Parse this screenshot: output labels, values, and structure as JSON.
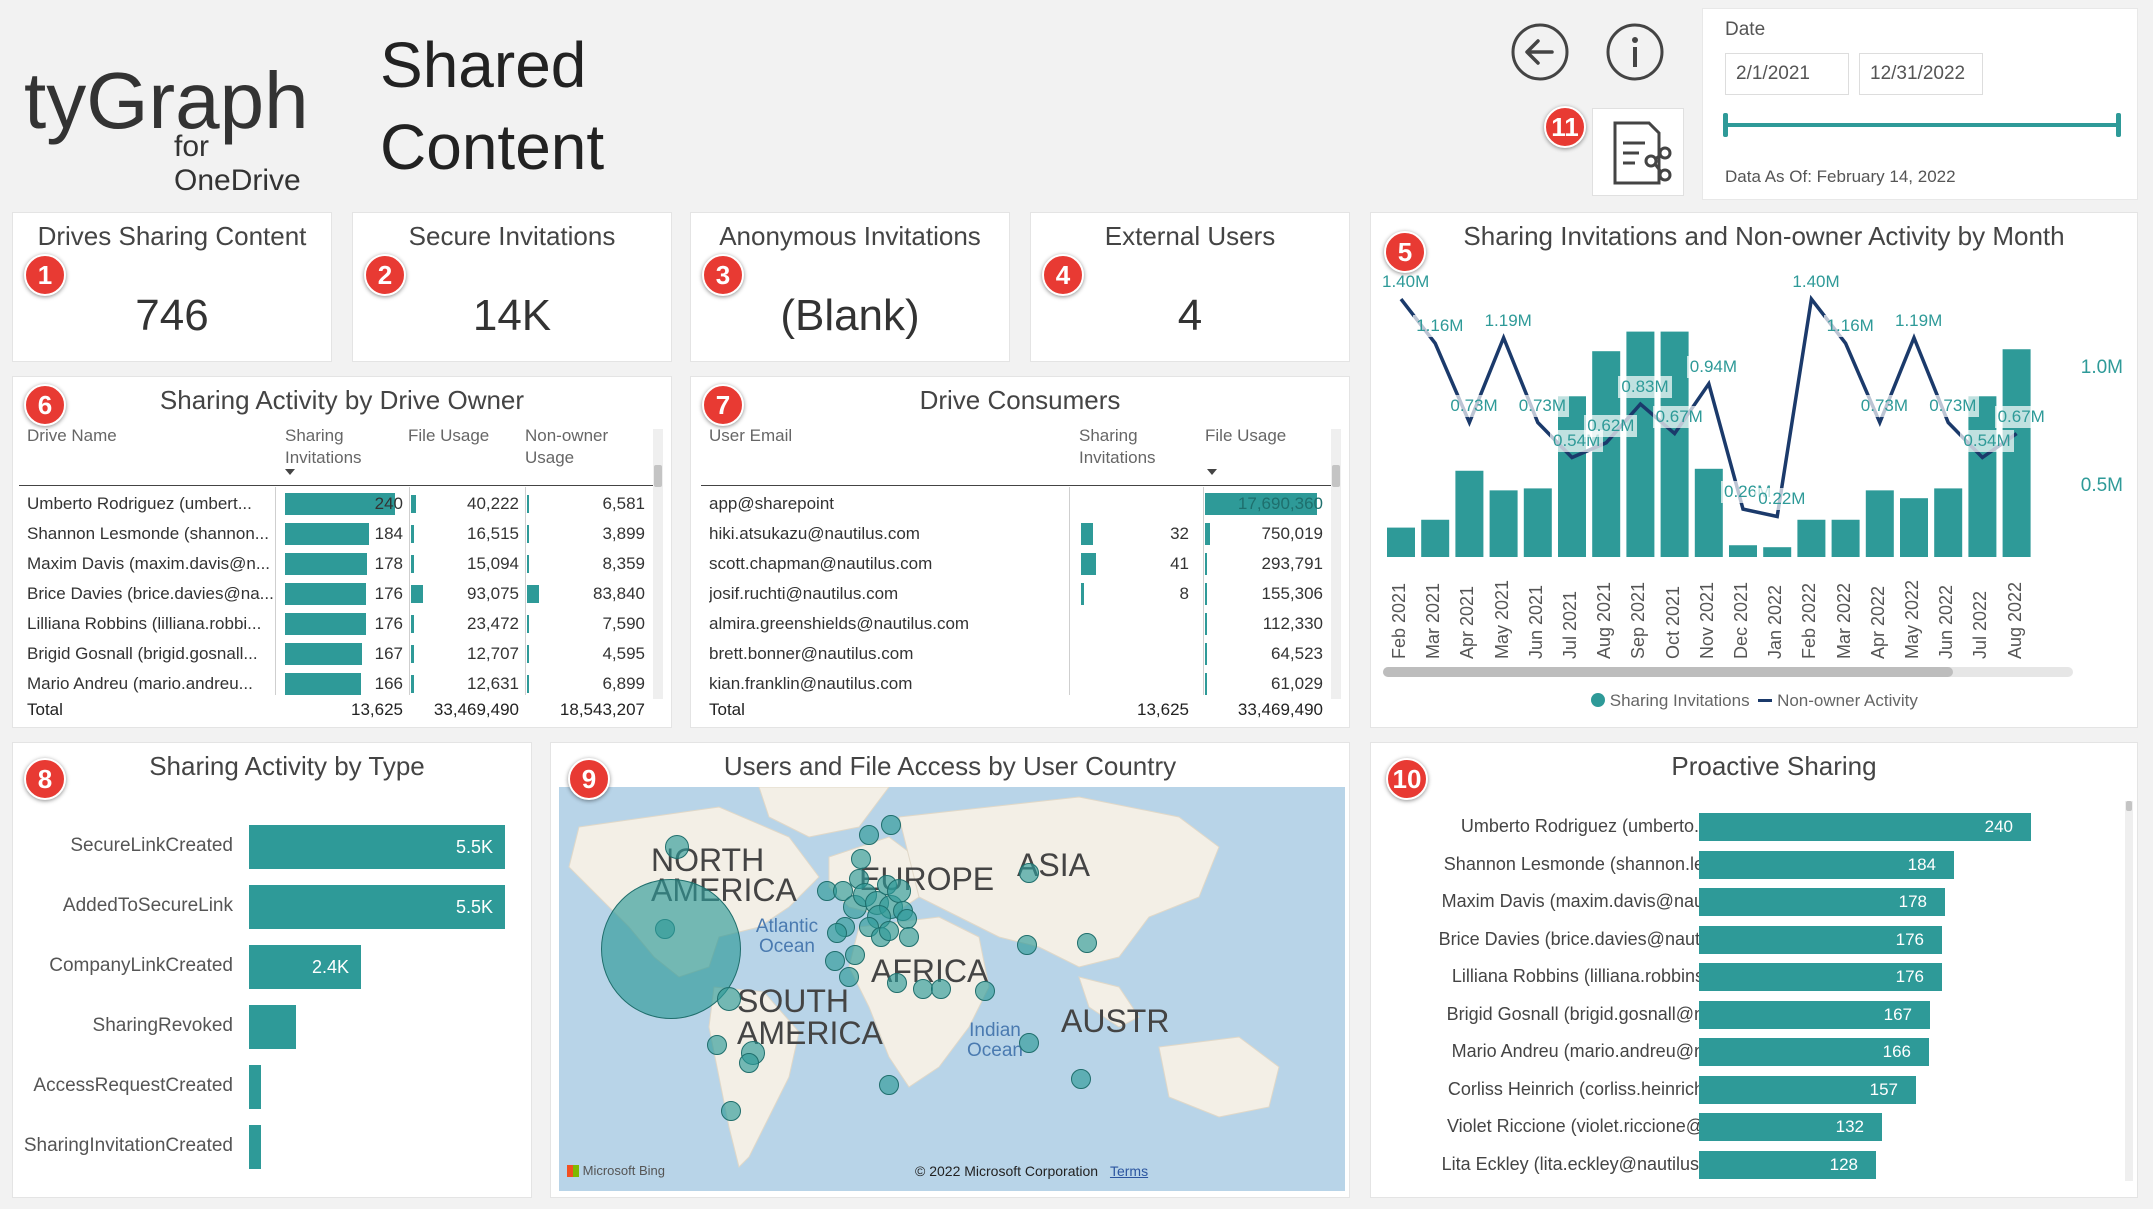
{
  "header": {
    "logo_main": "tyGraph",
    "logo_sub": "for OneDrive",
    "title_line1": "Shared",
    "title_line2": "Content",
    "back_icon": "back-arrow-icon",
    "info_icon": "info-icon",
    "report_icon": "report-share-icon",
    "badge_11": "11"
  },
  "date_filter": {
    "label": "Date",
    "start": "2/1/2021",
    "end": "12/31/2022",
    "as_of": "Data As Of: February 14, 2022"
  },
  "kpis": [
    {
      "badge": "1",
      "title": "Drives Sharing Content",
      "value": "746"
    },
    {
      "badge": "2",
      "title": "Secure Invitations",
      "value": "14K"
    },
    {
      "badge": "3",
      "title": "Anonymous Invitations",
      "value": "(Blank)"
    },
    {
      "badge": "4",
      "title": "External Users",
      "value": "4"
    }
  ],
  "monthly": {
    "badge": "5",
    "title": "Sharing Invitations and Non-owner Activity by Month",
    "axis_1m": "1.0M",
    "axis_05m": "0.5M",
    "legend_bar": "Sharing Invitations",
    "legend_line": "Non-owner Activity",
    "months": [
      "Feb 2021",
      "Mar 2021",
      "Apr 2021",
      "May 2021",
      "Jun 2021",
      "Jul 2021",
      "Aug 2021",
      "Sep 2021",
      "Oct 2021",
      "Nov 2021",
      "Dec 2021",
      "Jan 2022",
      "Feb 2022",
      "Mar 2022",
      "Apr 2022",
      "May 2022",
      "Jun 2022",
      "Jul 2022",
      "Aug 2022"
    ],
    "bars": [
      0.15,
      0.19,
      0.44,
      0.34,
      0.35,
      0.82,
      1.05,
      1.15,
      1.15,
      0.45,
      0.06,
      0.05,
      0.19,
      0.19,
      0.34,
      0.3,
      0.35,
      0.82,
      1.06
    ],
    "line": [
      1.4,
      1.16,
      0.73,
      1.19,
      0.73,
      0.54,
      0.62,
      0.83,
      0.67,
      0.94,
      0.26,
      0.22,
      1.4,
      1.16,
      0.73,
      1.19,
      0.73,
      0.54,
      0.67
    ],
    "line_labels": [
      "1.40M",
      "1.16M",
      "0.73M",
      "1.19M",
      "0.73M",
      "0.54M",
      "0.62M",
      "0.83M",
      "0.67M",
      "0.94M",
      "0.26M",
      "0.22M",
      "1.40M",
      "1.16M",
      "0.73M",
      "1.19M",
      "0.73M",
      "0.54M",
      "0.67M"
    ]
  },
  "drive_owner": {
    "badge": "6",
    "title": "Sharing Activity by Drive Owner",
    "col_name": "Drive Name",
    "col_inv": "Sharing Invitations",
    "col_file": "File Usage",
    "col_non": "Non-owner Usage",
    "rows": [
      {
        "name": "Umberto Rodriguez (umbert...",
        "inv": "240",
        "inv_v": 240,
        "file": "40,222",
        "file_v": 40222,
        "non": "6,581",
        "non_v": 6581
      },
      {
        "name": "Shannon Lesmonde (shannon...",
        "inv": "184",
        "inv_v": 184,
        "file": "16,515",
        "file_v": 16515,
        "non": "3,899",
        "non_v": 3899
      },
      {
        "name": "Maxim Davis (maxim.davis@n...",
        "inv": "178",
        "inv_v": 178,
        "file": "15,094",
        "file_v": 15094,
        "non": "8,359",
        "non_v": 8359
      },
      {
        "name": "Brice Davies (brice.davies@na...",
        "inv": "176",
        "inv_v": 176,
        "file": "93,075",
        "file_v": 93075,
        "non": "83,840",
        "non_v": 83840
      },
      {
        "name": "Lilliana Robbins (lilliana.robbi...",
        "inv": "176",
        "inv_v": 176,
        "file": "23,472",
        "file_v": 23472,
        "non": "7,590",
        "non_v": 7590
      },
      {
        "name": "Brigid Gosnall (brigid.gosnall...",
        "inv": "167",
        "inv_v": 167,
        "file": "12,707",
        "file_v": 12707,
        "non": "4,595",
        "non_v": 4595
      },
      {
        "name": "Mario Andreu (mario.andreu...",
        "inv": "166",
        "inv_v": 166,
        "file": "12,631",
        "file_v": 12631,
        "non": "6,899",
        "non_v": 6899
      }
    ],
    "total_label": "Total",
    "total_inv": "13,625",
    "total_file": "33,469,490",
    "total_non": "18,543,207"
  },
  "consumers": {
    "badge": "7",
    "title": "Drive Consumers",
    "col_email": "User Email",
    "col_inv": "Sharing Invitations",
    "col_file": "File Usage",
    "rows": [
      {
        "email": "app@sharepoint",
        "inv": "",
        "inv_v": 0,
        "file": "17,690,360",
        "file_v": 17690360
      },
      {
        "email": "hiki.atsukazu@nautilus.com",
        "inv": "32",
        "inv_v": 32,
        "file": "750,019",
        "file_v": 750019
      },
      {
        "email": "scott.chapman@nautilus.com",
        "inv": "41",
        "inv_v": 41,
        "file": "293,791",
        "file_v": 293791
      },
      {
        "email": "josif.ruchti@nautilus.com",
        "inv": "8",
        "inv_v": 8,
        "file": "155,306",
        "file_v": 155306
      },
      {
        "email": "almira.greenshields@nautilus.com",
        "inv": "",
        "inv_v": 0,
        "file": "112,330",
        "file_v": 112330
      },
      {
        "email": "brett.bonner@nautilus.com",
        "inv": "",
        "inv_v": 0,
        "file": "64,523",
        "file_v": 64523
      },
      {
        "email": "kian.franklin@nautilus.com",
        "inv": "",
        "inv_v": 0,
        "file": "61,029",
        "file_v": 61029
      }
    ],
    "total_label": "Total",
    "total_inv": "13,625",
    "total_file": "33,469,490"
  },
  "by_type": {
    "badge": "8",
    "title": "Sharing Activity by Type",
    "rows": [
      {
        "label": "SecureLinkCreated",
        "value": 5.5,
        "text": "5.5K"
      },
      {
        "label": "AddedToSecureLink",
        "value": 5.5,
        "text": "5.5K"
      },
      {
        "label": "CompanyLinkCreated",
        "value": 2.4,
        "text": "2.4K"
      },
      {
        "label": "SharingRevoked",
        "value": 1.0,
        "text": ""
      },
      {
        "label": "AccessRequestCreated",
        "value": 0.25,
        "text": ""
      },
      {
        "label": "SharingInvitationCreated",
        "value": 0.1,
        "text": ""
      }
    ]
  },
  "map": {
    "badge": "9",
    "title": "Users and File Access by User Country",
    "na": "NORTH AMERICA",
    "eu": "EUROPE",
    "asia": "ASIA",
    "africa": "AFRICA",
    "sa": "SOUTH AMERICA",
    "aus": "AUSTR",
    "atlantic": "Atlantic Ocean",
    "indian": "Indian Ocean",
    "bing": "Microsoft Bing",
    "copyright": "© 2022 Microsoft Corporation",
    "terms": "Terms"
  },
  "proactive": {
    "badge": "10",
    "title": "Proactive Sharing",
    "rows": [
      {
        "label": "Umberto Rodriguez (umberto.r...",
        "value": 240
      },
      {
        "label": "Shannon Lesmonde (shannon.le...",
        "value": 184
      },
      {
        "label": "Maxim Davis (maxim.davis@nau...",
        "value": 178
      },
      {
        "label": "Brice Davies (brice.davies@nauti...",
        "value": 176
      },
      {
        "label": "Lilliana Robbins (lilliana.robbins...",
        "value": 176
      },
      {
        "label": "Brigid Gosnall (brigid.gosnall@n...",
        "value": 167
      },
      {
        "label": "Mario Andreu (mario.andreu@n...",
        "value": 166
      },
      {
        "label": "Corliss Heinrich (corliss.heinrich...",
        "value": 157
      },
      {
        "label": "Violet Riccione (violet.riccione@...",
        "value": 132
      },
      {
        "label": "Lita Eckley (lita.eckley@nautilus....",
        "value": 128
      }
    ]
  },
  "colors": {
    "teal": "#2e9a98",
    "navy": "#1b3a6b",
    "badge": "#e83a33"
  }
}
